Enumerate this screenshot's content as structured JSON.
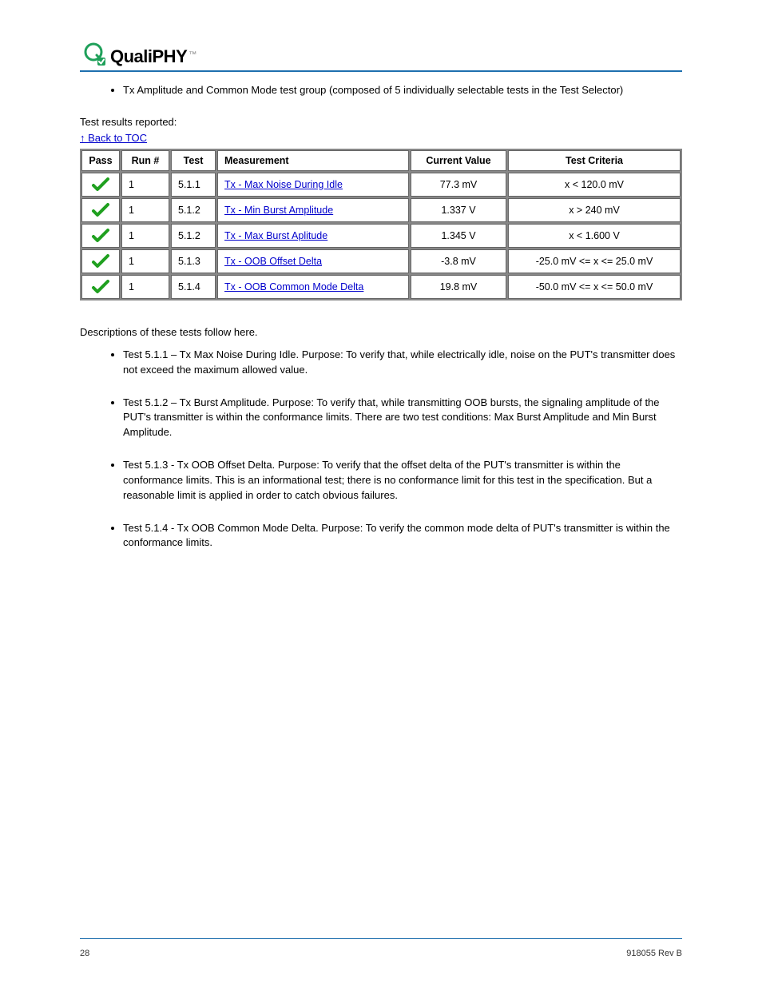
{
  "logo": {
    "text": "QualiPHY",
    "tm": "™"
  },
  "intro_bullet": "Tx Amplitude and Common Mode test group (composed of 5 individually selectable tests in the Test Selector)",
  "table_section_label": "Test results reported:",
  "toc_link": "↑ Back to TOC",
  "table": {
    "headers": [
      "Pass",
      "Run #",
      "Test",
      "Measurement",
      "Current Value",
      "Test Criteria"
    ],
    "rows": [
      {
        "pass": true,
        "run": "1",
        "test": "5.1.1",
        "measurement": "Tx - Max Noise During Idle",
        "value": "77.3 mV",
        "criteria": "x < 120.0 mV"
      },
      {
        "pass": true,
        "run": "1",
        "test": "5.1.2",
        "measurement": "Tx - Min Burst Amplitude",
        "value": "1.337 V",
        "criteria": "x > 240 mV"
      },
      {
        "pass": true,
        "run": "1",
        "test": "5.1.2",
        "measurement": "Tx - Max Burst Aplitude",
        "value": "1.345 V",
        "criteria": "x < 1.600 V"
      },
      {
        "pass": true,
        "run": "1",
        "test": "5.1.3",
        "measurement": "Tx - OOB Offset Delta",
        "value": "-3.8 mV",
        "criteria": "-25.0 mV <= x <= 25.0 mV"
      },
      {
        "pass": true,
        "run": "1",
        "test": "5.1.4",
        "measurement": "Tx - OOB Common Mode Delta",
        "value": "19.8 mV",
        "criteria": "-50.0 mV <= x <= 50.0 mV"
      }
    ]
  },
  "descriptions_heading": "Descriptions of these tests follow here.",
  "descriptions": [
    "Test 5.1.1 – Tx Max Noise During Idle. Purpose: To verify that, while electrically idle, noise on the PUT's transmitter does not exceed the maximum allowed value.",
    "Test 5.1.2 – Tx Burst Amplitude. Purpose: To verify that, while transmitting OOB bursts, the signaling amplitude of the PUT's transmitter is within the conformance limits. There are two test conditions: Max Burst Amplitude and Min Burst Amplitude.",
    "Test 5.1.3 - Tx OOB Offset Delta. Purpose: To verify that the offset delta of the PUT's transmitter is within the conformance limits. This is an informational test; there is no conformance limit for this test in the specification. But a reasonable limit is applied in order to catch obvious failures.",
    "Test 5.1.4 - Tx OOB Common Mode Delta. Purpose: To verify the common mode delta of PUT's transmitter is within the conformance limits."
  ],
  "footer": {
    "page": "28",
    "doc": "918055 Rev B"
  },
  "colors": {
    "rule_blue": "#1e6fae",
    "link_blue": "#0000cc",
    "pass_green": "#1fa01f",
    "logo_green": "#1fa05a"
  }
}
